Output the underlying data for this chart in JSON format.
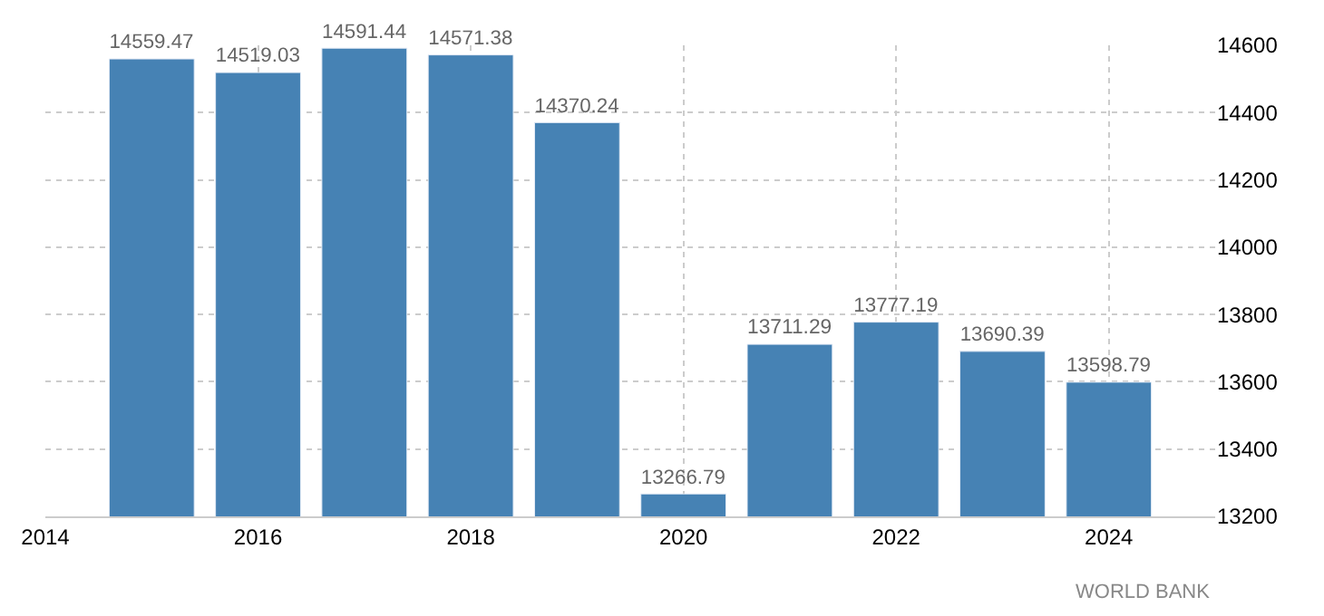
{
  "chart_data": {
    "type": "bar",
    "x": [
      2015,
      2016,
      2017,
      2018,
      2019,
      2020,
      2021,
      2022,
      2023,
      2024
    ],
    "values": [
      14559.47,
      14519.03,
      14591.44,
      14571.38,
      14370.24,
      13266.79,
      13711.29,
      13777.19,
      13690.39,
      13598.79
    ],
    "color": "#4682b4",
    "data_labels": true,
    "xlim": [
      2014,
      2025
    ],
    "xticks": [
      2014,
      2016,
      2018,
      2020,
      2022,
      2024
    ],
    "ylim": [
      13200,
      14600
    ],
    "yticks": [
      13200,
      13400,
      13600,
      13800,
      14000,
      14200,
      14400,
      14600
    ],
    "grid": true,
    "legend": false,
    "annotations": [
      "WORLD BANK"
    ]
  }
}
